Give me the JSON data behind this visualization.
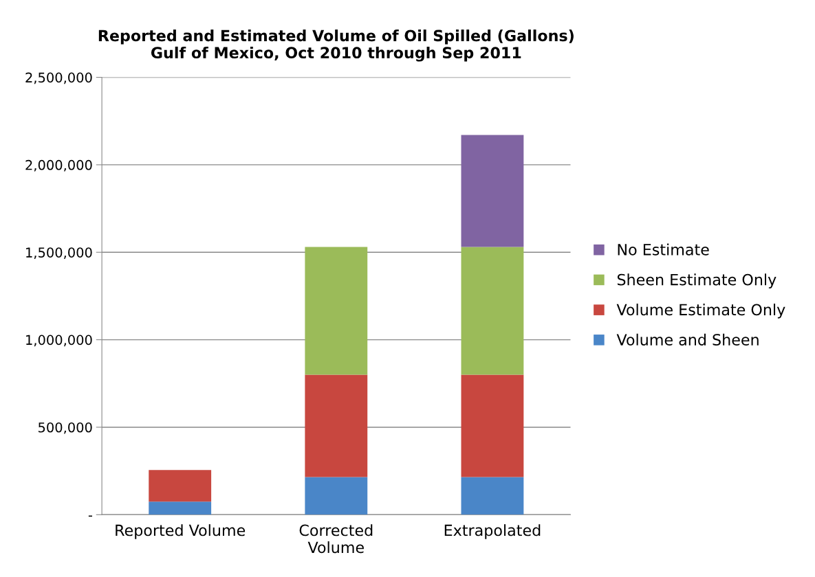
{
  "chart_data": {
    "type": "bar",
    "title": "Reported and Estimated Volume of Oil Spilled (Gallons)\nGulf of Mexico, Oct 2010 through Sep 2011",
    "categories": [
      "Reported Volume",
      "Corrected Volume",
      "Extrapolated"
    ],
    "stacked": true,
    "series": [
      {
        "name": "Volume and Sheen",
        "color": "#4a86c8",
        "values": [
          75000,
          215000,
          215000
        ]
      },
      {
        "name": "Volume Estimate Only",
        "color": "#c8473f",
        "values": [
          180000,
          585000,
          585000
        ]
      },
      {
        "name": "Sheen Estimate Only",
        "color": "#9bbb59",
        "values": [
          null,
          730000,
          730000
        ]
      },
      {
        "name": "No Estimate",
        "color": "#8064a2",
        "values": [
          null,
          null,
          640000
        ]
      }
    ],
    "ylim": [
      0,
      2500000
    ],
    "yticks": [
      {
        "value": 0,
        "label": "-"
      },
      {
        "value": 500000,
        "label": "500,000"
      },
      {
        "value": 1000000,
        "label": "1,000,000"
      },
      {
        "value": 1500000,
        "label": "1,500,000"
      },
      {
        "value": 2000000,
        "label": "2,000,000"
      },
      {
        "value": 2500000,
        "label": "2,500,000"
      }
    ],
    "grid": "y",
    "legend": "right"
  }
}
